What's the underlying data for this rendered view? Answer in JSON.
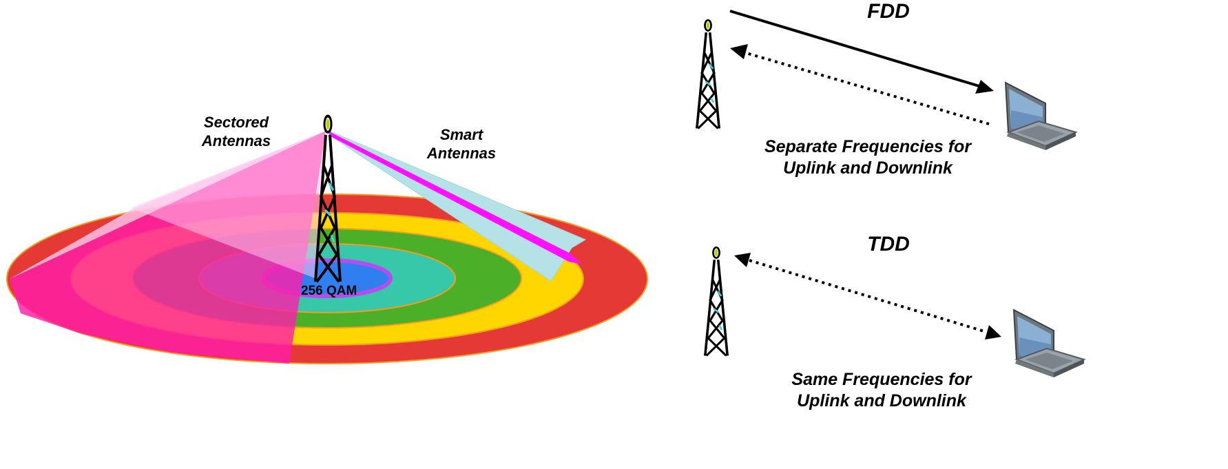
{
  "left_diagram": {
    "sectored_label": [
      "Sectored",
      "Antennas"
    ],
    "smart_label": [
      "Smart",
      "Antennas"
    ],
    "center_label": "256 QAM",
    "ring_colors": [
      "#e53935",
      "#ffd600",
      "#4caf28",
      "#36c8a8",
      "#b54cf0",
      "#2f7ff0"
    ],
    "sector_color": "#ff1faa",
    "beam_colors": {
      "wide": "#b5e2e6",
      "narrow": "#ff10ff"
    }
  },
  "fdd": {
    "title": "FDD",
    "caption": [
      "Separate Frequencies for",
      "Uplink and Downlink"
    ]
  },
  "tdd": {
    "title": "TDD",
    "caption": [
      "Same Frequencies for",
      "Uplink and Downlink"
    ]
  }
}
